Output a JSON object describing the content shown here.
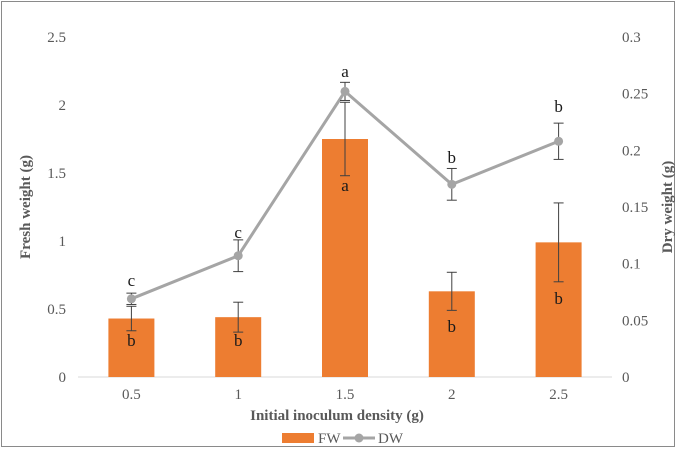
{
  "chart_data": {
    "type": "bar",
    "xlabel": "Initial inoculum density (g)",
    "ylabel": "Fresh weight (g)",
    "ylabel_right": "Dry weight (g)",
    "categories": [
      "0.5",
      "1",
      "1.5",
      "2",
      "2.5"
    ],
    "ylim": [
      0,
      2.5
    ],
    "ylim_right": [
      0,
      0.3
    ],
    "yticks": [
      "0",
      "0.5",
      "1",
      "1.5",
      "2",
      "2.5"
    ],
    "yticks_right": [
      "0",
      "0.05",
      "0.1",
      "0.15",
      "0.2",
      "0.25",
      "0.3"
    ],
    "grid": false,
    "legend_position": "bottom",
    "series": [
      {
        "name": "FW",
        "type": "bar",
        "axis": "left",
        "color": "#ed7d31",
        "values": [
          0.43,
          0.44,
          1.75,
          0.63,
          0.99
        ],
        "error": [
          0.09,
          0.11,
          0.27,
          0.14,
          0.29
        ],
        "letters": [
          "b",
          "b",
          "a",
          "b",
          "b"
        ]
      },
      {
        "name": "DW",
        "type": "line",
        "axis": "right",
        "color": "#a5a5a5",
        "values": [
          0.069,
          0.107,
          0.252,
          0.17,
          0.208
        ],
        "error": [
          0.005,
          0.014,
          0.008,
          0.014,
          0.016
        ],
        "letters": [
          "c",
          "c",
          "a",
          "b",
          "b"
        ]
      }
    ]
  }
}
